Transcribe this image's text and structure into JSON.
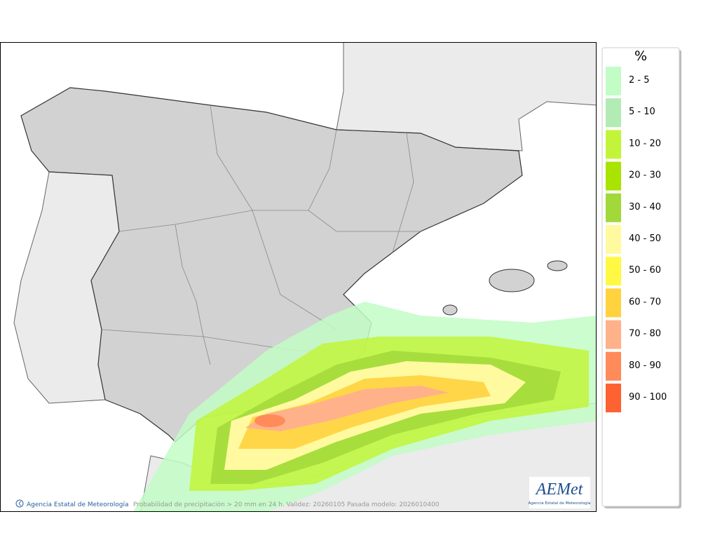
{
  "legend": {
    "title": "%",
    "items": [
      {
        "label": "2 - 5",
        "color": "#c2fdc6"
      },
      {
        "label": "5 - 10",
        "color": "#b2ebb4"
      },
      {
        "label": "10 - 20",
        "color": "#c2f53a"
      },
      {
        "label": "20 - 30",
        "color": "#a9e300"
      },
      {
        "label": "30 - 40",
        "color": "#a2d93a"
      },
      {
        "label": "40 - 50",
        "color": "#fffaa0"
      },
      {
        "label": "50 - 60",
        "color": "#fff944"
      },
      {
        "label": "60 - 70",
        "color": "#ffd23e"
      },
      {
        "label": "70 - 80",
        "color": "#ffb18a"
      },
      {
        "label": "80 - 90",
        "color": "#ff8a5a"
      },
      {
        "label": "90 - 100",
        "color": "#ff6232"
      }
    ]
  },
  "footer": {
    "agency": "Agencia Estatal de Meteorología",
    "caption": "Probabilidad de precipitación > 20 mm en 24 h. Validez: 20260105 Pasada modelo: 2026010400"
  },
  "logo": {
    "name": "AEMet",
    "subtitle": "Agencia Estatal de Meteorología"
  }
}
